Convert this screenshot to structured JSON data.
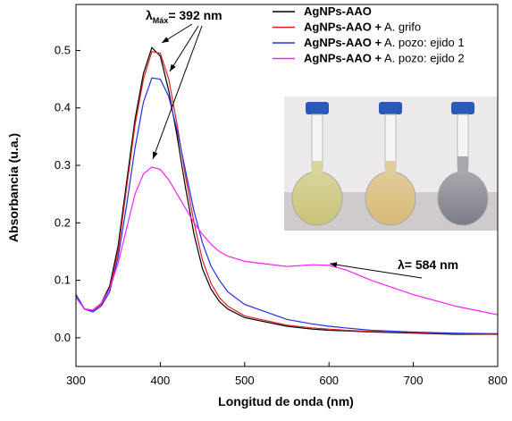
{
  "chart_data": {
    "type": "line",
    "x_label": "Longitud de onda (nm)",
    "y_label": "Absorbancia (u.a.)",
    "x": [
      300,
      310,
      320,
      330,
      340,
      350,
      360,
      370,
      380,
      390,
      400,
      410,
      420,
      430,
      440,
      450,
      460,
      470,
      480,
      500,
      550,
      580,
      600,
      620,
      650,
      700,
      750,
      800
    ],
    "series": [
      {
        "name": "AgNPs-AAO",
        "color": "#000000",
        "values": [
          0.075,
          0.05,
          0.048,
          0.06,
          0.09,
          0.16,
          0.27,
          0.38,
          0.46,
          0.505,
          0.49,
          0.43,
          0.35,
          0.26,
          0.18,
          0.12,
          0.085,
          0.063,
          0.05,
          0.035,
          0.02,
          0.015,
          0.013,
          0.012,
          0.01,
          0.008,
          0.006,
          0.006
        ]
      },
      {
        "name": "AgNPs-AAO + A. grifo",
        "color": "#e02020",
        "values": [
          0.075,
          0.05,
          0.047,
          0.058,
          0.085,
          0.15,
          0.26,
          0.37,
          0.45,
          0.498,
          0.495,
          0.45,
          0.37,
          0.28,
          0.2,
          0.135,
          0.095,
          0.07,
          0.055,
          0.038,
          0.022,
          0.017,
          0.015,
          0.013,
          0.011,
          0.009,
          0.007,
          0.006
        ]
      },
      {
        "name": "AgNPs-AAO + A. pozo: ejido 1",
        "color": "#2030e0",
        "values": [
          0.075,
          0.05,
          0.045,
          0.055,
          0.08,
          0.14,
          0.23,
          0.33,
          0.41,
          0.452,
          0.45,
          0.42,
          0.36,
          0.29,
          0.22,
          0.165,
          0.125,
          0.1,
          0.08,
          0.058,
          0.032,
          0.024,
          0.02,
          0.017,
          0.013,
          0.01,
          0.008,
          0.007
        ]
      },
      {
        "name": "AgNPs-AAO + A. pozo: ejido 2",
        "color": "#ff20ff",
        "values": [
          0.07,
          0.05,
          0.048,
          0.06,
          0.085,
          0.13,
          0.19,
          0.25,
          0.285,
          0.297,
          0.293,
          0.275,
          0.25,
          0.225,
          0.2,
          0.18,
          0.163,
          0.15,
          0.142,
          0.133,
          0.124,
          0.127,
          0.126,
          0.118,
          0.1,
          0.075,
          0.055,
          0.04
        ]
      }
    ],
    "xlim": [
      300,
      800
    ],
    "xticks": [
      300,
      400,
      500,
      600,
      700,
      800
    ],
    "ylim": [
      -0.05,
      0.58
    ],
    "yticks": [
      {
        "value": 0,
        "label": "0.0"
      },
      0.1,
      0.2,
      0.3,
      0.4,
      0.5
    ],
    "legend": "top-right",
    "annotations": [
      {
        "symbol": "λ",
        "sub": "Máx",
        "text": "= 392 nm"
      },
      {
        "text": "λ= 584 nm"
      }
    ]
  }
}
